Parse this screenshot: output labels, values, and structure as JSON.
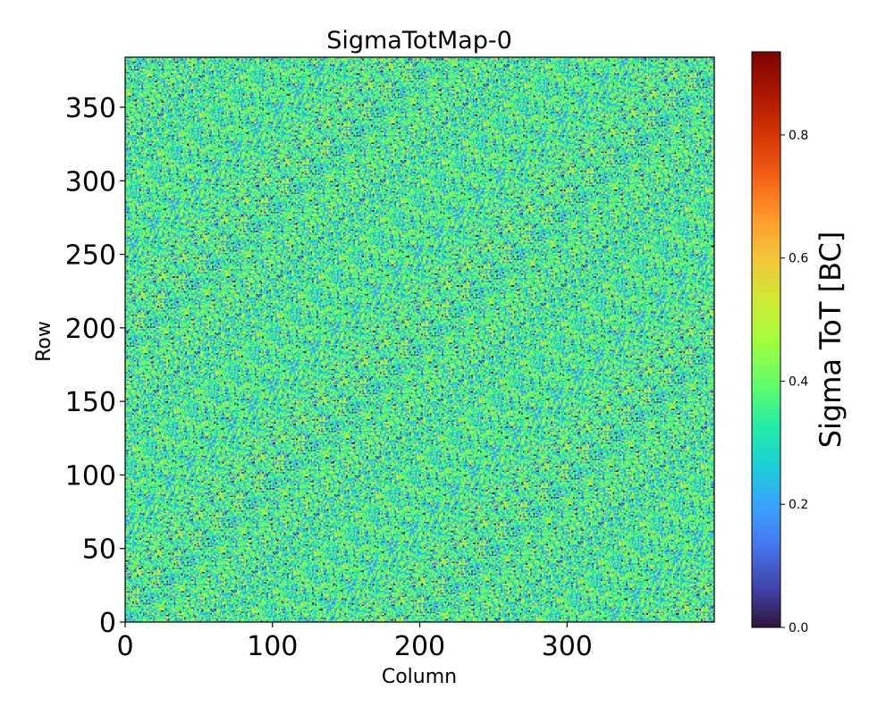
{
  "chart_data": {
    "type": "heatmap",
    "title": "SigmaTotMap-0",
    "xlabel": "Column",
    "ylabel": "Row",
    "xlim": [
      0,
      400
    ],
    "ylim": [
      0,
      384
    ],
    "x_ticks": [
      0,
      100,
      200,
      300
    ],
    "y_ticks": [
      0,
      50,
      100,
      150,
      200,
      250,
      300,
      350
    ],
    "grid": false,
    "colormap": "turbo",
    "value_distribution": {
      "description": "Noise-like per-pixel map",
      "typical_range": [
        0.0,
        0.55
      ],
      "mean": 0.35
    },
    "colorbar": {
      "label": "Sigma ToT [BC]",
      "range": [
        0.0,
        0.935
      ],
      "ticks": [
        0.0,
        0.2,
        0.4,
        0.6,
        0.8
      ],
      "tick_labels": [
        "0.0",
        "0.2",
        "0.4",
        "0.6",
        "0.8"
      ],
      "position": "right"
    }
  }
}
